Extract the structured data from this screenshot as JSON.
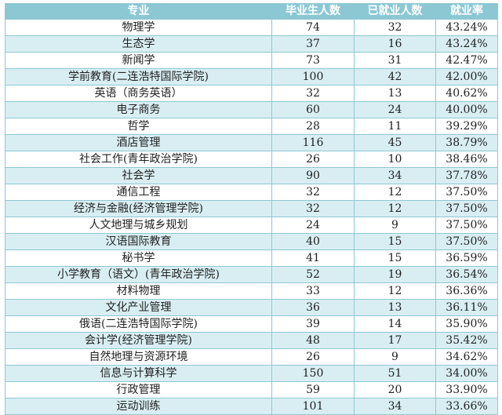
{
  "table": {
    "headers": [
      "专业",
      "毕业生人数",
      "已就业人数",
      "就业率"
    ],
    "rows": [
      [
        "物理学",
        "74",
        "32",
        "43.24%"
      ],
      [
        "生态学",
        "37",
        "16",
        "43.24%"
      ],
      [
        "新闻学",
        "73",
        "31",
        "42.47%"
      ],
      [
        "学前教育(二连浩特国际学院)",
        "100",
        "42",
        "42.00%"
      ],
      [
        "英语（商务英语）",
        "32",
        "13",
        "40.62%"
      ],
      [
        "电子商务",
        "60",
        "24",
        "40.00%"
      ],
      [
        "哲学",
        "28",
        "11",
        "39.29%"
      ],
      [
        "酒店管理",
        "116",
        "45",
        "38.79%"
      ],
      [
        "社会工作(青年政治学院)",
        "26",
        "10",
        "38.46%"
      ],
      [
        "社会学",
        "90",
        "34",
        "37.78%"
      ],
      [
        "通信工程",
        "32",
        "12",
        "37.50%"
      ],
      [
        "经济与金融(经济管理学院)",
        "32",
        "12",
        "37.50%"
      ],
      [
        "人文地理与城乡规划",
        "24",
        "9",
        "37.50%"
      ],
      [
        "汉语国际教育",
        "40",
        "15",
        "37.50%"
      ],
      [
        "秘书学",
        "41",
        "15",
        "36.59%"
      ],
      [
        "小学教育（语文）(青年政治学院)",
        "52",
        "19",
        "36.54%"
      ],
      [
        "材料物理",
        "33",
        "12",
        "36.36%"
      ],
      [
        "文化产业管理",
        "36",
        "13",
        "36.11%"
      ],
      [
        "俄语(二连浩特国际学院)",
        "39",
        "14",
        "35.90%"
      ],
      [
        "会计学(经济管理学院)",
        "48",
        "17",
        "35.42%"
      ],
      [
        "自然地理与资源环境",
        "26",
        "9",
        "34.62%"
      ],
      [
        "信息与计算科学",
        "150",
        "51",
        "34.00%"
      ],
      [
        "行政管理",
        "59",
        "20",
        "33.90%"
      ],
      [
        "运动训练",
        "101",
        "34",
        "33.66%"
      ]
    ]
  },
  "colors": {
    "header_bg": "#8cc8d4",
    "alt_row_bg": "#d9eef3",
    "border": "#8cc8d4"
  }
}
